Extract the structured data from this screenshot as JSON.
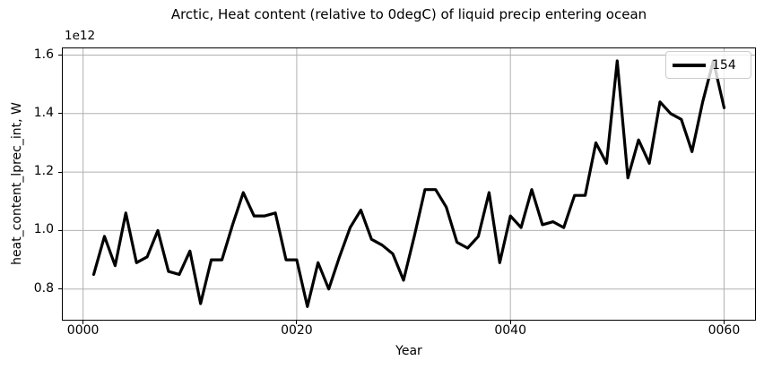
{
  "chart_data": {
    "type": "line",
    "title": "Arctic, Heat content (relative to 0degC) of liquid precip entering ocean",
    "xlabel": "Year",
    "ylabel": "heat_content_lprec_int, W",
    "y_offset_label": "1e12",
    "x": [
      1,
      2,
      3,
      4,
      5,
      6,
      7,
      8,
      9,
      10,
      11,
      12,
      13,
      14,
      15,
      16,
      17,
      18,
      19,
      20,
      21,
      22,
      23,
      24,
      25,
      26,
      27,
      28,
      29,
      30,
      31,
      32,
      33,
      34,
      35,
      36,
      37,
      38,
      39,
      40,
      41,
      42,
      43,
      44,
      45,
      46,
      47,
      48,
      49,
      50,
      51,
      52,
      53,
      54,
      55,
      56,
      57,
      58,
      59,
      60
    ],
    "series": [
      {
        "name": "154",
        "color": "#000000",
        "linewidth": 3.2,
        "values_1e12_W": [
          0.85,
          0.98,
          0.88,
          1.06,
          0.89,
          0.91,
          1.0,
          0.86,
          0.85,
          0.93,
          0.75,
          0.9,
          0.9,
          1.02,
          1.13,
          1.05,
          1.05,
          1.06,
          0.9,
          0.9,
          0.74,
          0.89,
          0.8,
          0.91,
          1.01,
          1.07,
          0.97,
          0.95,
          0.92,
          0.83,
          0.98,
          1.14,
          1.14,
          1.08,
          0.96,
          0.94,
          0.98,
          1.13,
          0.89,
          1.05,
          1.01,
          1.14,
          1.02,
          1.03,
          1.01,
          1.12,
          1.12,
          1.3,
          1.23,
          1.58,
          1.18,
          1.31,
          1.23,
          1.44,
          1.4,
          1.38,
          1.27,
          1.44,
          1.58,
          1.42
        ]
      }
    ],
    "xticks": {
      "positions": [
        0,
        20,
        40,
        60
      ],
      "labels": [
        "0000",
        "0020",
        "0040",
        "0060"
      ]
    },
    "yticks": {
      "positions": [
        0.8,
        1.0,
        1.2,
        1.4,
        1.6
      ],
      "labels": [
        "0.8",
        "1.0",
        "1.2",
        "1.4",
        "1.6"
      ]
    },
    "xlim": [
      -1.9,
      62.9
    ],
    "ylim": [
      0.695,
      1.623
    ],
    "grid": true,
    "grid_color": "#b0b0b0",
    "background": "#ffffff",
    "legend": {
      "location": "upper right",
      "entries": [
        "154"
      ]
    }
  }
}
